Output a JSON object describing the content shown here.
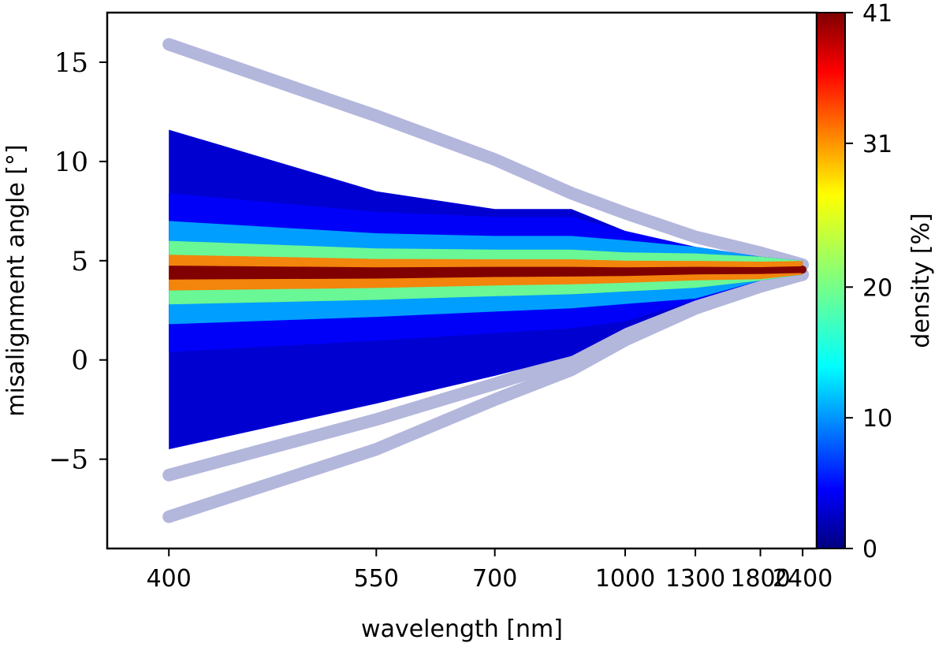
{
  "chart_data": {
    "type": "line",
    "title": "",
    "xlabel": "wavelength [nm]",
    "ylabel": "misalignment angle [°]",
    "x": [
      400,
      550,
      700,
      850,
      1000,
      1300,
      1800,
      2400
    ],
    "x_ticks": [
      "400",
      "550",
      "700",
      "1000",
      "1300",
      "1800",
      "2400"
    ],
    "x_tick_values": [
      400,
      550,
      700,
      1000,
      1300,
      1800,
      2400
    ],
    "x_scale": "reciprocal",
    "xlim": [
      370,
      2700
    ],
    "ylim": [
      -9.5,
      17.5
    ],
    "y_ticks": [
      "−5",
      "0",
      "5",
      "10",
      "15"
    ],
    "y_tick_values": [
      -5,
      0,
      5,
      10,
      15
    ],
    "grid": false,
    "envelope": {
      "upper": [
        11.6,
        8.5,
        7.6,
        7.6,
        6.5,
        5.7,
        5.2,
        5.0
      ],
      "lower": [
        -4.5,
        -2.2,
        -0.8,
        0.2,
        1.6,
        3.0,
        4.0,
        4.3
      ]
    },
    "density_bands": [
      {
        "offset": 0.35,
        "density": 41
      },
      {
        "offset": 0.9,
        "density": 31
      },
      {
        "offset": 1.6,
        "density": 20
      },
      {
        "offset": 2.6,
        "density": 12
      },
      {
        "offset": 4.0,
        "density": 5
      }
    ],
    "center_line": [
      4.4,
      4.4,
      4.45,
      4.45,
      4.45,
      4.5,
      4.5,
      4.55
    ],
    "outlier_series": [
      {
        "values": [
          15.9,
          12.3,
          10.1,
          8.4,
          7.4,
          6.2,
          5.4,
          4.8
        ],
        "color": "#b4b7dc"
      },
      {
        "values": [
          -5.8,
          -3.0,
          -1.2,
          0.0,
          1.4,
          2.8,
          3.8,
          4.3
        ],
        "color": "#b4b7dc"
      },
      {
        "values": [
          -7.9,
          -4.5,
          -2.0,
          -0.5,
          1.0,
          2.6,
          3.7,
          4.3
        ],
        "color": "#b4b7dc"
      }
    ],
    "colorbar": {
      "label": "density [%]",
      "min": 0,
      "max": 41,
      "ticks": [
        "0",
        "10",
        "20",
        "31",
        "41"
      ],
      "tick_values": [
        0,
        10,
        20,
        31,
        41
      ],
      "colormap": "jet"
    }
  }
}
